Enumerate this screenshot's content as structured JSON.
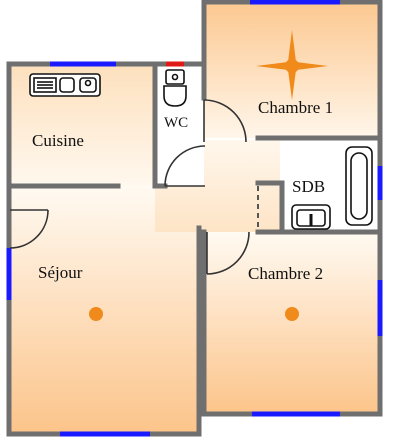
{
  "rooms": {
    "cuisine": "Cuisine",
    "wc": "WC",
    "chambre1": "Chambre 1",
    "sdb": "SDB",
    "sejour": "Séjour",
    "chambre2": "Chambre 2"
  },
  "colors": {
    "wall": "#6f6f6f",
    "window": "#1a1aff",
    "door_red": "#e01818",
    "floor_light": "#fff4e6",
    "floor_warm": "#fcc890",
    "light_point": "#f08a1a",
    "wc_floor": "#ffffff",
    "sdb_floor": "#ffffff"
  },
  "icons": {
    "light_points": [
      "light-point-icon",
      "light-point-icon",
      "ceiling-light-icon"
    ],
    "fixtures": [
      "stove-icon",
      "toilet-icon",
      "bathtub-icon",
      "sink-icon"
    ]
  }
}
